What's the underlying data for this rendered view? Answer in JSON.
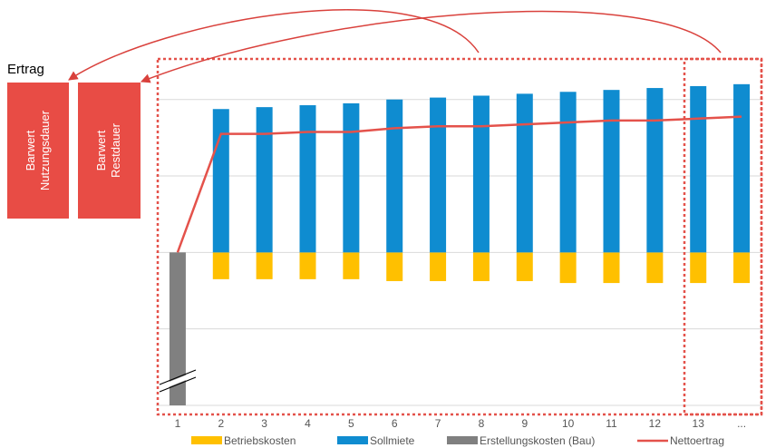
{
  "chart_data": {
    "type": "bar",
    "categories": [
      "1",
      "2",
      "3",
      "4",
      "5",
      "6",
      "7",
      "8",
      "9",
      "10",
      "11",
      "12",
      "13",
      "..."
    ],
    "series": [
      {
        "name": "Betriebskosten",
        "color": "#FFC000",
        "values": [
          0,
          -14,
          -14,
          -14,
          -14,
          -15,
          -15,
          -15,
          -15,
          -16,
          -16,
          -16,
          -16,
          -16
        ]
      },
      {
        "name": "Sollmiete",
        "color": "#0F8CD0",
        "values": [
          0,
          75,
          76,
          77,
          78,
          80,
          81,
          82,
          83,
          84,
          85,
          86,
          87,
          88
        ]
      },
      {
        "name": "Erstellungskosten (Bau)",
        "color": "#808080",
        "values": [
          -80,
          0,
          0,
          0,
          0,
          0,
          0,
          0,
          0,
          0,
          0,
          0,
          0,
          0
        ]
      },
      {
        "name": "Nettoertrag",
        "color": "#E4524B",
        "type": "line",
        "values": [
          0,
          62,
          62,
          63,
          63,
          65,
          66,
          66,
          67,
          68,
          69,
          69,
          70,
          71
        ]
      }
    ],
    "ylim": [
      -80,
      105
    ],
    "grid": true,
    "legend_position": "bottom"
  },
  "annotations": {
    "ertrag_label": "Ertrag",
    "box1": {
      "line1": "Barwert",
      "line2": "Nutzungsdauer",
      "color": "#E84C45"
    },
    "box2": {
      "line1": "Barwert",
      "line2": "Restdauer",
      "color": "#E84C45"
    }
  }
}
